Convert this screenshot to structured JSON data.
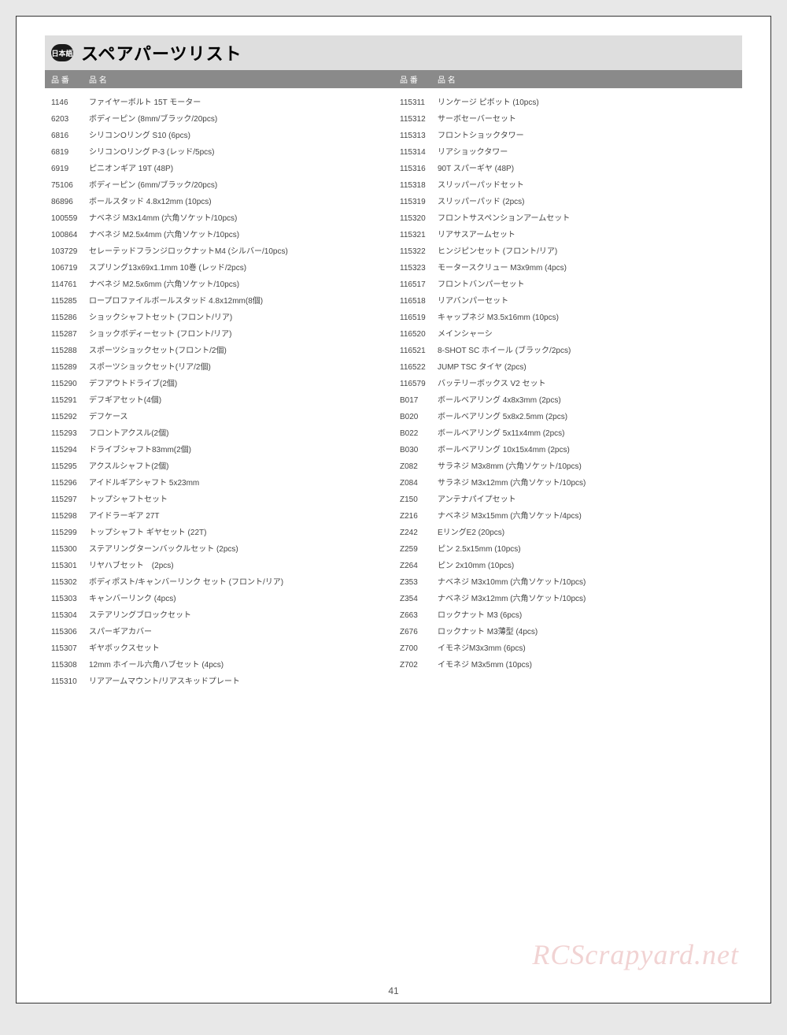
{
  "page": {
    "lang_badge": "日本語",
    "title": "スペアパーツリスト",
    "page_number": "41",
    "watermark": "RCScrapyard.net",
    "colors": {
      "page_bg": "#ffffff",
      "outer_bg": "#e8e8e8",
      "title_bar_bg": "#dedede",
      "header_bg": "#8a8a8a",
      "header_fg": "#ffffff",
      "badge_bg": "#1a1a1a",
      "text": "#444444",
      "watermark": "rgba(200,80,80,0.25)"
    },
    "header_labels": {
      "part_number": "品 番",
      "part_name": "品 名"
    },
    "parts_left": [
      {
        "num": "1146",
        "name": "ファイヤーボルト 15T モーター"
      },
      {
        "num": "6203",
        "name": "ボディーピン (8mm/ブラック/20pcs)"
      },
      {
        "num": "6816",
        "name": "シリコンOリング S10 (6pcs)"
      },
      {
        "num": "6819",
        "name": "シリコンOリング P-3 (レッド/5pcs)"
      },
      {
        "num": "6919",
        "name": "ピニオンギア 19T (48P)"
      },
      {
        "num": "75106",
        "name": "ボディーピン (6mm/ブラック/20pcs)"
      },
      {
        "num": "86896",
        "name": "ボールスタッド 4.8x12mm (10pcs)"
      },
      {
        "num": "100559",
        "name": "ナベネジ M3x14mm (六角ソケット/10pcs)"
      },
      {
        "num": "100864",
        "name": "ナベネジ M2.5x4mm (六角ソケット/10pcs)"
      },
      {
        "num": "103729",
        "name": "セレーテッドフランジロックナットM4 (シルバー/10pcs)"
      },
      {
        "num": "106719",
        "name": "スプリング13x69x1.1mm 10巻 (レッド/2pcs)"
      },
      {
        "num": "114761",
        "name": "ナベネジ M2.5x6mm (六角ソケット/10pcs)"
      },
      {
        "num": "115285",
        "name": "ロープロファイルボールスタッド 4.8x12mm(8個)"
      },
      {
        "num": "115286",
        "name": "ショックシャフトセット (フロント/リア)"
      },
      {
        "num": "115287",
        "name": "ショックボディーセット (フロント/リア)"
      },
      {
        "num": "115288",
        "name": "スポーツショックセット(フロント/2個)"
      },
      {
        "num": "115289",
        "name": "スポーツショックセット(リア/2個)"
      },
      {
        "num": "115290",
        "name": "デフアウトドライブ(2個)"
      },
      {
        "num": "115291",
        "name": "デフギアセット(4個)"
      },
      {
        "num": "115292",
        "name": "デフケース"
      },
      {
        "num": "115293",
        "name": "フロントアクスル(2個)"
      },
      {
        "num": "115294",
        "name": "ドライブシャフト83mm(2個)"
      },
      {
        "num": "115295",
        "name": "アクスルシャフト(2個)"
      },
      {
        "num": "115296",
        "name": "アイドルギアシャフト 5x23mm"
      },
      {
        "num": "115297",
        "name": "トップシャフトセット"
      },
      {
        "num": "115298",
        "name": "アイドラーギア 27T"
      },
      {
        "num": "115299",
        "name": "トップシャフト ギヤセット (22T)"
      },
      {
        "num": "115300",
        "name": "ステアリングターンバックルセット (2pcs)"
      },
      {
        "num": "115301",
        "name": "リヤハブセット　(2pcs)"
      },
      {
        "num": "115302",
        "name": "ボディポスト/キャンバーリンク セット (フロント/リア)"
      },
      {
        "num": "115303",
        "name": "キャンバーリンク (4pcs)"
      },
      {
        "num": "115304",
        "name": "ステアリングブロックセット"
      },
      {
        "num": "115306",
        "name": "スパーギアカバー"
      },
      {
        "num": "115307",
        "name": "ギヤボックスセット"
      },
      {
        "num": "115308",
        "name": "12mm ホイール六角ハブセット (4pcs)"
      },
      {
        "num": "115310",
        "name": "リアアームマウント/リアスキッドプレート"
      }
    ],
    "parts_right": [
      {
        "num": "115311",
        "name": "リンケージ ピボット (10pcs)"
      },
      {
        "num": "115312",
        "name": "サーボセーバーセット"
      },
      {
        "num": "115313",
        "name": "フロントショックタワー"
      },
      {
        "num": "115314",
        "name": "リアショックタワー"
      },
      {
        "num": "115316",
        "name": "90T スパーギヤ (48P)"
      },
      {
        "num": "115318",
        "name": "スリッパーパッドセット"
      },
      {
        "num": "115319",
        "name": "スリッパーパッド (2pcs)"
      },
      {
        "num": "115320",
        "name": "フロントサスペンションアームセット"
      },
      {
        "num": "115321",
        "name": "リアサスアームセット"
      },
      {
        "num": "115322",
        "name": "ヒンジピンセット (フロント/リア)"
      },
      {
        "num": "115323",
        "name": "モータースクリュー M3x9mm (4pcs)"
      },
      {
        "num": "116517",
        "name": "フロントバンパーセット"
      },
      {
        "num": "116518",
        "name": "リアバンパーセット"
      },
      {
        "num": "116519",
        "name": "キャップネジ M3.5x16mm (10pcs)"
      },
      {
        "num": "116520",
        "name": "メインシャーシ"
      },
      {
        "num": "116521",
        "name": "8-SHOT SC ホイール (ブラック/2pcs)"
      },
      {
        "num": "116522",
        "name": "JUMP TSC タイヤ (2pcs)"
      },
      {
        "num": "116579",
        "name": "バッテリーボックス V2 セット"
      },
      {
        "num": "B017",
        "name": "ボールベアリング 4x8x3mm (2pcs)"
      },
      {
        "num": "B020",
        "name": "ボールベアリング 5x8x2.5mm (2pcs)"
      },
      {
        "num": "B022",
        "name": "ボールベアリング 5x11x4mm (2pcs)"
      },
      {
        "num": "B030",
        "name": "ボールベアリング 10x15x4mm (2pcs)"
      },
      {
        "num": "Z082",
        "name": "サラネジ M3x8mm (六角ソケット/10pcs)"
      },
      {
        "num": "Z084",
        "name": "サラネジ M3x12mm (六角ソケット/10pcs)"
      },
      {
        "num": "Z150",
        "name": "アンテナパイプセット"
      },
      {
        "num": "Z216",
        "name": "ナベネジ M3x15mm (六角ソケット/4pcs)"
      },
      {
        "num": "Z242",
        "name": "EリングE2 (20pcs)"
      },
      {
        "num": "Z259",
        "name": "ピン 2.5x15mm (10pcs)"
      },
      {
        "num": "Z264",
        "name": "ピン 2x10mm (10pcs)"
      },
      {
        "num": "Z353",
        "name": "ナベネジ M3x10mm (六角ソケット/10pcs)"
      },
      {
        "num": "Z354",
        "name": "ナベネジ M3x12mm (六角ソケット/10pcs)"
      },
      {
        "num": "Z663",
        "name": "ロックナット M3 (6pcs)"
      },
      {
        "num": "Z676",
        "name": "ロックナット M3薄型 (4pcs)"
      },
      {
        "num": "Z700",
        "name": "イモネジM3x3mm (6pcs)"
      },
      {
        "num": "Z702",
        "name": "イモネジ M3x5mm (10pcs)"
      }
    ]
  }
}
